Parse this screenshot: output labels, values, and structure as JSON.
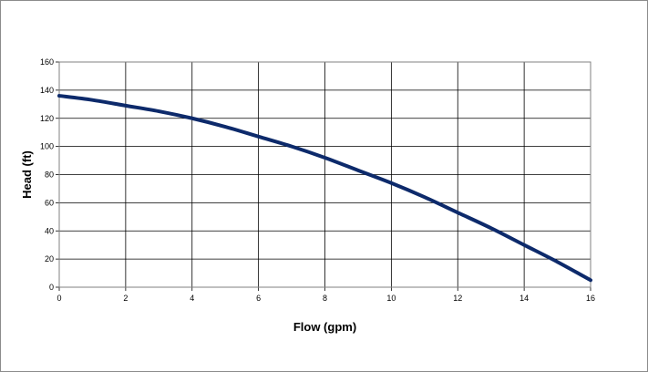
{
  "chart_data": {
    "type": "line",
    "title": "",
    "xlabel": "Flow (gpm)",
    "ylabel": "Head (ft)",
    "xlim": [
      0,
      16
    ],
    "ylim": [
      0,
      160
    ],
    "xticks": [
      0,
      2,
      4,
      6,
      8,
      10,
      12,
      14,
      16
    ],
    "yticks": [
      0,
      20,
      40,
      60,
      80,
      100,
      120,
      140,
      160
    ],
    "grid": true,
    "legend": "none",
    "colors": {
      "series": "#0d2a6b",
      "grid": "#000000",
      "plot_border": "#808080"
    },
    "series": [
      {
        "x": [
          0,
          1,
          2,
          3,
          4,
          5,
          6,
          7,
          8,
          9,
          10,
          11,
          12,
          13,
          14,
          15,
          16
        ],
        "y": [
          136,
          133,
          129,
          125,
          120,
          114,
          107,
          100,
          92,
          83,
          74,
          64,
          53,
          42,
          30,
          18,
          5
        ]
      }
    ]
  }
}
